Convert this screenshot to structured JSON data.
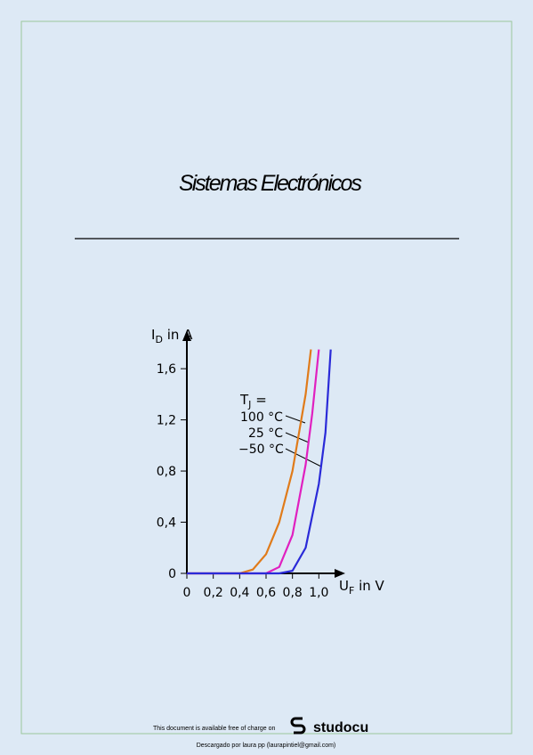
{
  "document": {
    "title": "Sistemas Electrónicos",
    "footer": {
      "available": "This document is available free of charge on",
      "brand": "studocu",
      "downloaded": "Descargado por laura pp (laurapintiel@gmail.com)"
    }
  },
  "chart_data": {
    "type": "line",
    "y_label": {
      "main": "I",
      "sub": "D",
      "rest": " in A"
    },
    "x_label": {
      "main": "U",
      "sub": "F",
      "rest": " in V"
    },
    "legend_title": {
      "main": "T",
      "sub": "J",
      "rest": " ="
    },
    "xlim": [
      0,
      1.2
    ],
    "ylim": [
      0,
      1.9
    ],
    "xticks": [
      0,
      {
        "value": 0.2,
        "label": "0,2"
      },
      {
        "value": 0.4,
        "label": "0,4"
      },
      {
        "value": 0.6,
        "label": "0,6"
      },
      {
        "value": 0.8,
        "label": "0,8"
      },
      {
        "value": 1.0,
        "label": "1,0"
      }
    ],
    "yticks": [
      0,
      {
        "value": 0.4,
        "label": "0,4"
      },
      {
        "value": 0.8,
        "label": "0,8"
      },
      {
        "value": 1.2,
        "label": "1,2"
      },
      {
        "value": 1.6,
        "label": "1,6"
      }
    ],
    "series": [
      {
        "name": "100 °C",
        "color": "#e07b1a",
        "x": [
          0,
          0.4,
          0.5,
          0.6,
          0.7,
          0.8,
          0.9,
          0.94
        ],
        "values": [
          0,
          0,
          0.03,
          0.15,
          0.4,
          0.8,
          1.4,
          1.75
        ]
      },
      {
        "name": "25 °C",
        "color": "#e020c0",
        "x": [
          0,
          0.6,
          0.7,
          0.8,
          0.9,
          0.95,
          1.0
        ],
        "values": [
          0,
          0,
          0.05,
          0.3,
          0.85,
          1.25,
          1.75
        ]
      },
      {
        "name": "−50 °C",
        "color": "#2a2ad8",
        "x": [
          0,
          0.7,
          0.8,
          0.9,
          1.0,
          1.05,
          1.09
        ],
        "values": [
          0,
          0,
          0.02,
          0.2,
          0.7,
          1.1,
          1.75
        ]
      }
    ]
  }
}
